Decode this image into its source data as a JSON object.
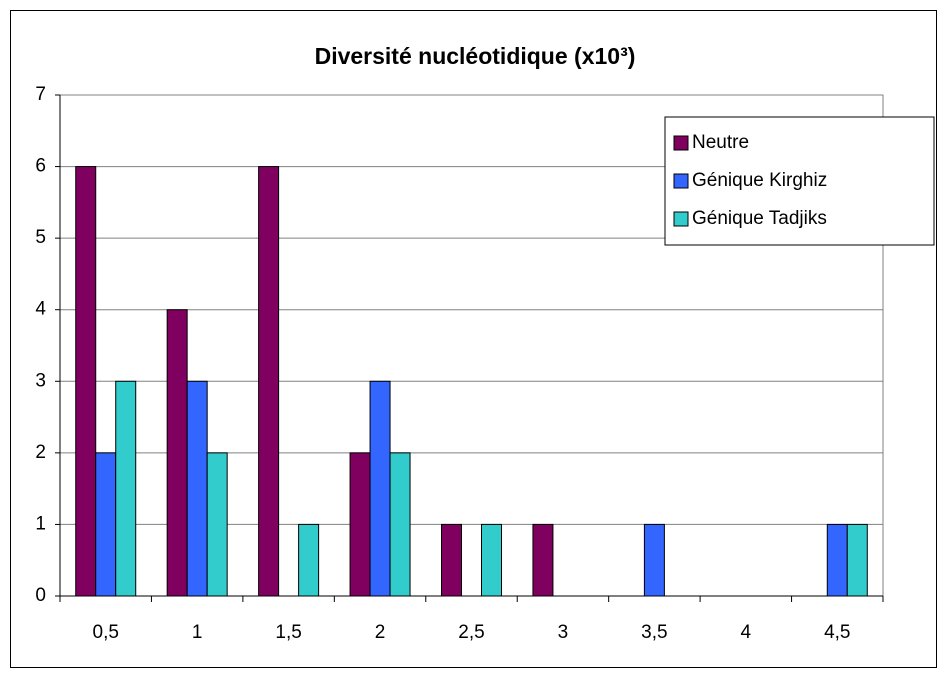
{
  "chart_data": {
    "type": "bar",
    "title": "Diversité nucléotidique (x10³)",
    "categories": [
      "0,5",
      "1",
      "1,5",
      "2",
      "2,5",
      "3",
      "3,5",
      "4",
      "4,5"
    ],
    "series": [
      {
        "name": "Neutre",
        "color": "#800060",
        "values": [
          6,
          4,
          6,
          2,
          1,
          1,
          0,
          0,
          0
        ]
      },
      {
        "name": "Génique Kirghiz",
        "color": "#3366ff",
        "values": [
          2,
          3,
          0,
          3,
          0,
          0,
          1,
          0,
          1
        ]
      },
      {
        "name": "Génique Tadjiks",
        "color": "#33cccc",
        "values": [
          3,
          2,
          1,
          2,
          1,
          0,
          0,
          0,
          1
        ]
      }
    ],
    "ylim": [
      0,
      7
    ],
    "yticks": [
      0,
      1,
      2,
      3,
      4,
      5,
      6,
      7
    ],
    "grid": true,
    "legend": "top-right"
  }
}
